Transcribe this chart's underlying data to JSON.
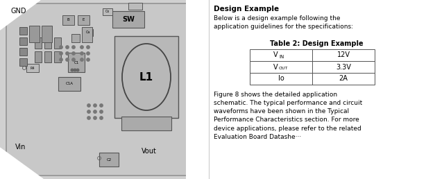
{
  "bg_color": "#d0d0d0",
  "white": "#ffffff",
  "black": "#000000",
  "title": "Design Example",
  "intro_text": "Below is a design example following the\napplication guidelines for the specifications:",
  "table_title": "Table 2: Design Example",
  "table_row_labels": [
    "V",
    "V",
    "Io"
  ],
  "table_row_subs": [
    "IN",
    "OUT",
    ""
  ],
  "table_row_values": [
    "12V",
    "3.3V",
    "2A"
  ],
  "footer_text": "Figure 8 shows the detailed application\nschematic. The typical performance and circuit\nwaveforms have been shown in the Typical\nPerformance Characteristics section. For more\ndevice applications, please refer to the related\nEvaluation Board Datashe···",
  "label_GND": "GND",
  "label_SW": "SW",
  "label_L1": "L1",
  "label_Vin": "Vin",
  "label_Vout": "Vout"
}
